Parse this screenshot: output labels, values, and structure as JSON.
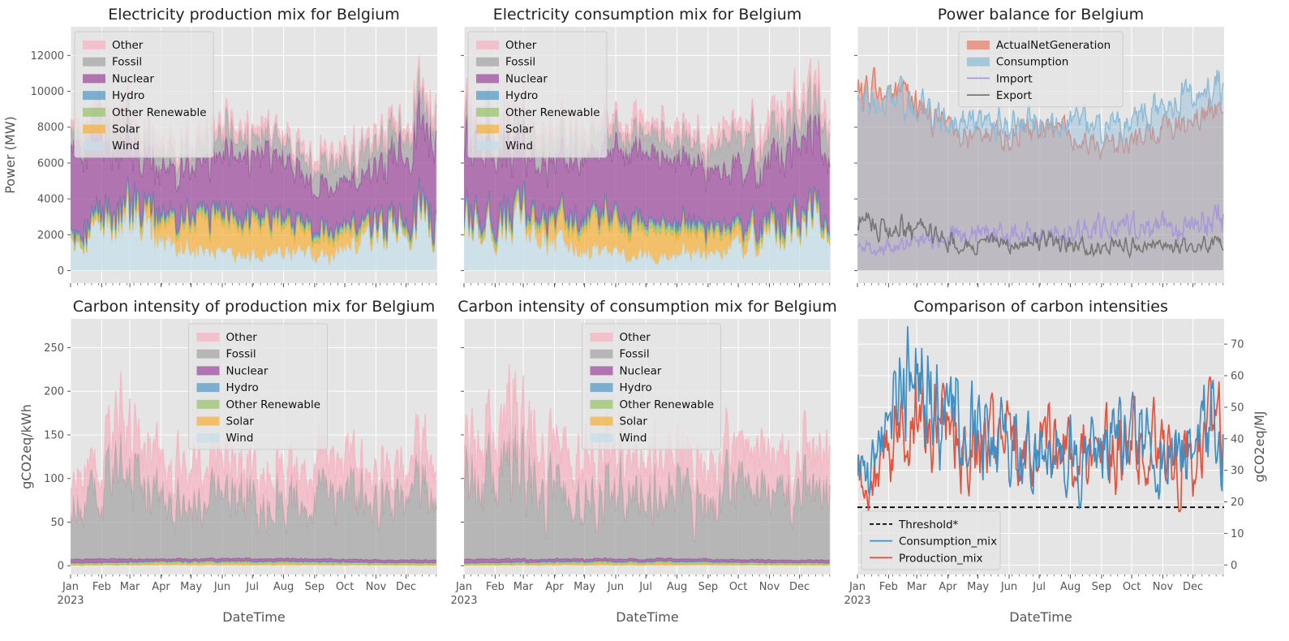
{
  "figure": {
    "xtick_labels": [
      "Jan",
      "Feb",
      "Mar",
      "Apr",
      "May",
      "Jun",
      "Jul",
      "Aug",
      "Sep",
      "Oct",
      "Nov",
      "Dec"
    ],
    "year_label": "2023",
    "xlabel": "DateTime",
    "colors": {
      "Other": "#f4b6c2",
      "Fossil": "#a6a6a6",
      "Nuclear": "#9e4f9e",
      "Hydro": "#5a9bc4",
      "Other Renewable": "#9cc46b",
      "Solar": "#f5b342",
      "Wind": "#c5dde8",
      "ActualNetGeneration": "#e5826e",
      "Consumption": "#8fbcd6",
      "Import": "#a89ad8",
      "Export": "#777777",
      "Threshold*": "#000000",
      "Consumption_mix": "#3f8fc4",
      "Production_mix": "#e5533d",
      "axes_bg": "#e5e5e5",
      "grid": "#ffffff"
    }
  },
  "chart_data": [
    {
      "id": "production_mix",
      "type": "area",
      "title": "Electricity production mix for Belgium",
      "ylabel": "Power (MW)",
      "ylim": [
        -700,
        13600
      ],
      "yticks": [
        0,
        2000,
        4000,
        6000,
        8000,
        10000,
        12000
      ],
      "xlim_days": [
        0,
        365
      ],
      "legend": "upper-left",
      "stack_order_bottom_to_top": [
        "Wind",
        "Solar",
        "Other Renewable",
        "Hydro",
        "Nuclear",
        "Fossil",
        "Other"
      ],
      "legend_entries": [
        "Other",
        "Fossil",
        "Nuclear",
        "Hydro",
        "Other Renewable",
        "Solar",
        "Wind"
      ],
      "x_months": [
        "Jan",
        "Feb",
        "Mar",
        "Apr",
        "May",
        "Jun",
        "Jul",
        "Aug",
        "Sep",
        "Oct",
        "Nov",
        "Dec"
      ],
      "series": [
        {
          "name": "Wind",
          "values": [
            2400,
            2800,
            2200,
            1500,
            1000,
            700,
            900,
            900,
            800,
            1700,
            2300,
            2900
          ]
        },
        {
          "name": "Solar",
          "values": [
            100,
            300,
            700,
            1300,
            1800,
            1900,
            1700,
            1400,
            1000,
            500,
            150,
            80
          ]
        },
        {
          "name": "Other Renewable",
          "values": [
            300,
            300,
            300,
            300,
            300,
            300,
            300,
            300,
            300,
            300,
            300,
            300
          ]
        },
        {
          "name": "Hydro",
          "values": [
            150,
            150,
            150,
            150,
            150,
            150,
            150,
            150,
            150,
            150,
            150,
            150
          ]
        },
        {
          "name": "Nuclear",
          "values": [
            4700,
            3500,
            2600,
            2400,
            2800,
            3400,
            3600,
            2800,
            2200,
            2400,
            3200,
            4300
          ]
        },
        {
          "name": "Fossil",
          "values": [
            1000,
            1400,
            1200,
            900,
            1100,
            1100,
            1000,
            1000,
            1500,
            1400,
            1300,
            1500
          ]
        },
        {
          "name": "Other",
          "values": [
            500,
            500,
            500,
            500,
            500,
            500,
            500,
            500,
            500,
            500,
            500,
            500
          ]
        }
      ]
    },
    {
      "id": "consumption_mix",
      "type": "area",
      "title": "Electricity consumption mix for Belgium",
      "ylabel": "",
      "ylim": [
        -700,
        13600
      ],
      "xlim_days": [
        0,
        365
      ],
      "legend": "upper-left",
      "stack_order_bottom_to_top": [
        "Wind",
        "Solar",
        "Other Renewable",
        "Hydro",
        "Nuclear",
        "Fossil",
        "Other"
      ],
      "legend_entries": [
        "Other",
        "Fossil",
        "Nuclear",
        "Hydro",
        "Other Renewable",
        "Solar",
        "Wind"
      ],
      "x_months": [
        "Jan",
        "Feb",
        "Mar",
        "Apr",
        "May",
        "Jun",
        "Jul",
        "Aug",
        "Sep",
        "Oct",
        "Nov",
        "Dec"
      ],
      "series": [
        {
          "name": "Wind",
          "values": [
            2300,
            2600,
            2000,
            1400,
            1000,
            700,
            900,
            900,
            800,
            1600,
            2200,
            2800
          ]
        },
        {
          "name": "Solar",
          "values": [
            100,
            300,
            700,
            1200,
            1700,
            1800,
            1600,
            1300,
            900,
            500,
            150,
            80
          ]
        },
        {
          "name": "Other Renewable",
          "values": [
            300,
            300,
            300,
            300,
            300,
            300,
            300,
            300,
            300,
            300,
            300,
            300
          ]
        },
        {
          "name": "Hydro",
          "values": [
            200,
            200,
            200,
            200,
            200,
            200,
            200,
            200,
            200,
            200,
            200,
            200
          ]
        },
        {
          "name": "Nuclear",
          "values": [
            4000,
            3400,
            3000,
            3000,
            3300,
            3600,
            3700,
            3300,
            2900,
            3200,
            3800,
            4000
          ]
        },
        {
          "name": "Fossil",
          "values": [
            1200,
            1300,
            1200,
            1000,
            1100,
            1100,
            1000,
            1100,
            1500,
            1500,
            1500,
            1600
          ]
        },
        {
          "name": "Other",
          "values": [
            600,
            600,
            600,
            600,
            600,
            600,
            600,
            600,
            700,
            700,
            900,
            900
          ]
        }
      ]
    },
    {
      "id": "power_balance",
      "type": "area",
      "title": "Power balance for Belgium",
      "ylim": [
        -700,
        13600
      ],
      "xlim_days": [
        0,
        365
      ],
      "legend": "upper-center",
      "legend_entries": [
        "ActualNetGeneration",
        "Consumption",
        "Import",
        "Export"
      ],
      "x_months": [
        "Jan",
        "Feb",
        "Mar",
        "Apr",
        "May",
        "Jun",
        "Jul",
        "Aug",
        "Sep",
        "Oct",
        "Nov",
        "Dec"
      ],
      "series": [
        {
          "name": "ActualNetGeneration",
          "kind": "area",
          "values": [
            10000,
            9800,
            8600,
            7400,
            7600,
            7900,
            7900,
            7300,
            7100,
            7600,
            8200,
            8800
          ]
        },
        {
          "name": "Consumption",
          "kind": "area",
          "values": [
            9400,
            9300,
            8800,
            8300,
            8200,
            8300,
            8300,
            8200,
            8100,
            8700,
            9600,
            10200
          ]
        },
        {
          "name": "Import",
          "kind": "line",
          "values": [
            1300,
            1500,
            1900,
            2200,
            2100,
            1900,
            2000,
            2200,
            2400,
            2300,
            2700,
            2900
          ]
        },
        {
          "name": "Export",
          "kind": "line",
          "values": [
            2400,
            2400,
            2000,
            1500,
            1500,
            1600,
            1700,
            1400,
            1400,
            1400,
            1400,
            1500
          ]
        }
      ]
    },
    {
      "id": "ci_production",
      "type": "area",
      "title": "Carbon intensity of production mix for Belgium",
      "ylabel": "gCO2eq/kWh",
      "ylim": [
        -10,
        283
      ],
      "yticks": [
        0,
        50,
        100,
        150,
        200,
        250
      ],
      "xlim_days": [
        0,
        365
      ],
      "legend": "upper-center",
      "stack_order_bottom_to_top": [
        "Wind",
        "Solar",
        "Other Renewable",
        "Hydro",
        "Nuclear",
        "Fossil",
        "Other"
      ],
      "legend_entries": [
        "Other",
        "Fossil",
        "Nuclear",
        "Hydro",
        "Other Renewable",
        "Solar",
        "Wind"
      ],
      "x_months": [
        "Jan",
        "Feb",
        "Mar",
        "Apr",
        "May",
        "Jun",
        "Jul",
        "Aug",
        "Sep",
        "Oct",
        "Nov",
        "Dec"
      ],
      "series": [
        {
          "name": "Wind",
          "values": [
            0.5,
            0.5,
            0.5,
            0.5,
            0.5,
            0.5,
            0.5,
            0.5,
            0.5,
            0.5,
            0.5,
            0.5
          ]
        },
        {
          "name": "Solar",
          "values": [
            0.5,
            1,
            1.5,
            2,
            2,
            2,
            2,
            2,
            1.5,
            1,
            0.5,
            0.5
          ]
        },
        {
          "name": "Other Renewable",
          "values": [
            2,
            2,
            2,
            2,
            2,
            2,
            2,
            2,
            2,
            2,
            2,
            2
          ]
        },
        {
          "name": "Hydro",
          "values": [
            0.5,
            0.5,
            0.5,
            0.5,
            0.5,
            0.5,
            0.5,
            0.5,
            0.5,
            0.5,
            0.5,
            0.5
          ]
        },
        {
          "name": "Nuclear",
          "values": [
            4,
            4,
            3,
            3,
            3,
            3,
            3,
            3,
            3,
            3,
            3,
            3
          ]
        },
        {
          "name": "Fossil",
          "values": [
            60,
            95,
            80,
            60,
            70,
            70,
            70,
            75,
            80,
            75,
            70,
            80
          ]
        },
        {
          "name": "Other",
          "values": [
            30,
            45,
            45,
            40,
            40,
            35,
            35,
            35,
            40,
            35,
            30,
            40
          ]
        }
      ]
    },
    {
      "id": "ci_consumption",
      "type": "area",
      "title": "Carbon intensity of consumption mix for Belgium",
      "ylim": [
        -10,
        283
      ],
      "xlim_days": [
        0,
        365
      ],
      "legend": "upper-center",
      "stack_order_bottom_to_top": [
        "Wind",
        "Solar",
        "Other Renewable",
        "Hydro",
        "Nuclear",
        "Fossil",
        "Other"
      ],
      "legend_entries": [
        "Other",
        "Fossil",
        "Nuclear",
        "Hydro",
        "Other Renewable",
        "Solar",
        "Wind"
      ],
      "x_months": [
        "Jan",
        "Feb",
        "Mar",
        "Apr",
        "May",
        "Jun",
        "Jul",
        "Aug",
        "Sep",
        "Oct",
        "Nov",
        "Dec"
      ],
      "series": [
        {
          "name": "Wind",
          "values": [
            0.5,
            0.5,
            0.5,
            0.5,
            0.5,
            0.5,
            0.5,
            0.5,
            0.5,
            0.5,
            0.5,
            0.5
          ]
        },
        {
          "name": "Solar",
          "values": [
            0.5,
            1,
            1.5,
            2,
            2,
            2,
            2,
            2,
            1.5,
            1,
            0.5,
            0.5
          ]
        },
        {
          "name": "Other Renewable",
          "values": [
            2,
            2,
            2,
            2,
            2,
            2,
            2,
            2,
            2,
            2,
            2,
            2
          ]
        },
        {
          "name": "Hydro",
          "values": [
            0.5,
            0.5,
            0.5,
            0.5,
            0.5,
            0.5,
            0.5,
            0.5,
            0.5,
            0.5,
            0.5,
            0.5
          ]
        },
        {
          "name": "Nuclear",
          "values": [
            4,
            4,
            3,
            3,
            3,
            3,
            3,
            3,
            3,
            3,
            3,
            3
          ]
        },
        {
          "name": "Fossil",
          "values": [
            90,
            120,
            95,
            70,
            75,
            80,
            75,
            80,
            85,
            80,
            75,
            85
          ]
        },
        {
          "name": "Other",
          "values": [
            40,
            55,
            50,
            45,
            45,
            40,
            40,
            40,
            45,
            40,
            35,
            45
          ]
        }
      ]
    },
    {
      "id": "ci_comparison",
      "type": "line",
      "title": "Comparison of carbon intensities",
      "ylabel": "gCO2eq/MJ",
      "ylim": [
        -3,
        78
      ],
      "yticks": [
        0,
        10,
        20,
        30,
        40,
        50,
        60,
        70
      ],
      "y_axis_side": "right",
      "xlim_days": [
        0,
        365
      ],
      "legend": "lower-left",
      "legend_entries": [
        "Threshold*",
        "Consumption_mix",
        "Production_mix"
      ],
      "threshold": 18.3,
      "x_months": [
        "Jan",
        "Feb",
        "Mar",
        "Apr",
        "May",
        "Jun",
        "Jul",
        "Aug",
        "Sep",
        "Oct",
        "Nov",
        "Dec"
      ],
      "series": [
        {
          "name": "Consumption_mix",
          "values": [
            30,
            58,
            60,
            45,
            42,
            35,
            34,
            33,
            38,
            36,
            33,
            45
          ]
        },
        {
          "name": "Production_mix",
          "values": [
            27,
            45,
            48,
            40,
            40,
            35,
            35,
            33,
            40,
            37,
            33,
            42
          ]
        }
      ]
    }
  ]
}
